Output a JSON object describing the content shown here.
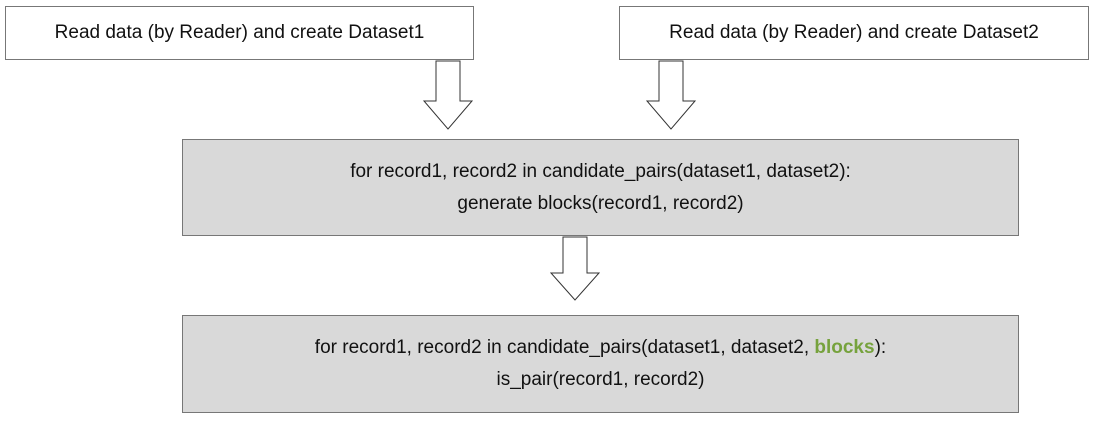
{
  "diagram": {
    "nodes": {
      "read_dataset1": {
        "label": "Read data (by Reader) and create Dataset1"
      },
      "read_dataset2": {
        "label": "Read data (by Reader) and create Dataset2"
      },
      "generate_blocks": {
        "line1": "for record1, record2 in candidate_pairs(dataset1, dataset2):",
        "line2": "generate blocks(record1, record2)"
      },
      "is_pair": {
        "line1_prefix": "for record1, record2 in candidate_pairs(dataset1, dataset2, ",
        "line1_highlight": "blocks",
        "line1_suffix": "):",
        "line2": "is_pair(record1, record2)"
      }
    },
    "edges": [
      {
        "from": "read_dataset1",
        "to": "generate_blocks"
      },
      {
        "from": "read_dataset2",
        "to": "generate_blocks"
      },
      {
        "from": "generate_blocks",
        "to": "is_pair"
      }
    ],
    "colors": {
      "box_fill_gray": "#d9d9d9",
      "box_border": "#777777",
      "highlight_text": "#76a23d"
    }
  }
}
